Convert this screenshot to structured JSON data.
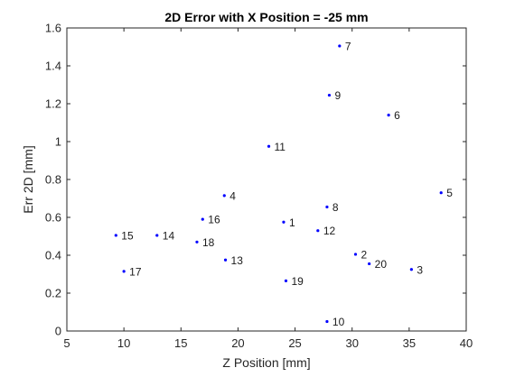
{
  "chart_data": {
    "type": "scatter",
    "title": "2D Error with X Position = -25 mm",
    "xlabel": "Z Position [mm]",
    "ylabel": "Err 2D [mm]",
    "xlim": [
      5,
      40
    ],
    "ylim": [
      0,
      1.6
    ],
    "xticks": [
      5,
      10,
      15,
      20,
      25,
      30,
      35,
      40
    ],
    "yticks": [
      0,
      0.2,
      0.4,
      0.6,
      0.8,
      1,
      1.2,
      1.4,
      1.6
    ],
    "xtick_labels": [
      "5",
      "10",
      "15",
      "20",
      "25",
      "30",
      "35",
      "40"
    ],
    "ytick_labels": [
      "0",
      "0.2",
      "0.4",
      "0.6",
      "0.8",
      "1",
      "1.2",
      "1.4",
      "1.6"
    ],
    "grid": false,
    "box": true,
    "marker_color": "#0000ff",
    "axis_color": "#262626",
    "points": [
      {
        "label": "1",
        "x": 24.0,
        "y": 0.575
      },
      {
        "label": "2",
        "x": 30.3,
        "y": 0.405
      },
      {
        "label": "3",
        "x": 35.2,
        "y": 0.325
      },
      {
        "label": "4",
        "x": 18.8,
        "y": 0.715
      },
      {
        "label": "5",
        "x": 37.8,
        "y": 0.73
      },
      {
        "label": "6",
        "x": 33.2,
        "y": 1.14
      },
      {
        "label": "7",
        "x": 28.9,
        "y": 1.505
      },
      {
        "label": "8",
        "x": 27.8,
        "y": 0.655
      },
      {
        "label": "9",
        "x": 28.0,
        "y": 1.245
      },
      {
        "label": "10",
        "x": 27.8,
        "y": 0.05
      },
      {
        "label": "11",
        "x": 22.7,
        "y": 0.975
      },
      {
        "label": "12",
        "x": 27.0,
        "y": 0.53
      },
      {
        "label": "13",
        "x": 18.9,
        "y": 0.375
      },
      {
        "label": "14",
        "x": 12.9,
        "y": 0.505
      },
      {
        "label": "15",
        "x": 9.3,
        "y": 0.505
      },
      {
        "label": "16",
        "x": 16.9,
        "y": 0.59
      },
      {
        "label": "17",
        "x": 10.0,
        "y": 0.315
      },
      {
        "label": "18",
        "x": 16.4,
        "y": 0.47
      },
      {
        "label": "19",
        "x": 24.2,
        "y": 0.265
      },
      {
        "label": "20",
        "x": 31.5,
        "y": 0.355
      }
    ]
  }
}
